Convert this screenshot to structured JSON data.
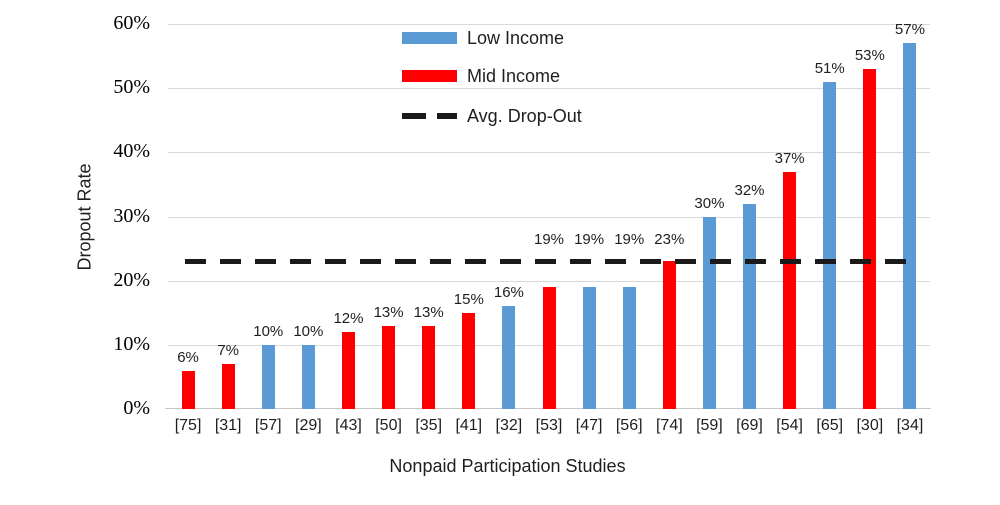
{
  "chart_data": {
    "type": "bar",
    "title": "",
    "xlabel": "Nonpaid Participation Studies",
    "ylabel": "Dropout Rate",
    "categories": [
      "[75]",
      "[31]",
      "[57]",
      "[29]",
      "[43]",
      "[50]",
      "[35]",
      "[41]",
      "[32]",
      "[53]",
      "[47]",
      "[56]",
      "[74]",
      "[59]",
      "[69]",
      "[54]",
      "[65]",
      "[30]",
      "[34]"
    ],
    "series": [
      {
        "name": "Low Income",
        "color": "#5B9BD5",
        "values": [
          null,
          null,
          10,
          10,
          null,
          null,
          null,
          null,
          16,
          null,
          19,
          19,
          null,
          30,
          32,
          null,
          51,
          null,
          57
        ]
      },
      {
        "name": "Mid Income",
        "color": "#FF0000",
        "values": [
          6,
          7,
          null,
          null,
          12,
          13,
          13,
          15,
          null,
          19,
          null,
          null,
          23,
          null,
          null,
          37,
          null,
          53,
          null
        ]
      }
    ],
    "value_labels": [
      "6%",
      "7%",
      "10%",
      "10%",
      "12%",
      "13%",
      "13%",
      "15%",
      "16%",
      "19%",
      "19%",
      "19%",
      "23%",
      "30%",
      "32%",
      "37%",
      "51%",
      "53%",
      "57%"
    ],
    "avg_line": {
      "name": "Avg. Drop-Out",
      "value": 23,
      "color": "#1A1A1A",
      "style": "dashed"
    },
    "ylim": [
      0,
      60
    ],
    "yticks": [
      "0%",
      "10%",
      "20%",
      "30%",
      "40%",
      "50%",
      "60%"
    ],
    "ytick_values": [
      0,
      10,
      20,
      30,
      40,
      50,
      60
    ],
    "grid": "horizontal",
    "legend_position": "upper-center",
    "colors": {
      "grid": "#D9D9D9",
      "axis_line": "#C6C6C6",
      "text": "#1F1F1F",
      "tick_text": "#000000"
    }
  }
}
